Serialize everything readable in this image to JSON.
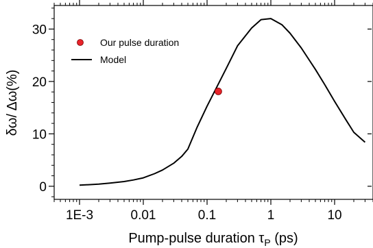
{
  "chart_data": {
    "type": "line",
    "xlabel": "Pump-pulse duration  τ",
    "xlabel_sub": "P",
    "xlabel_unit": " (ps)",
    "ylabel": "δω/ Δω(%)",
    "x_scale": "log",
    "xlim": [
      0.0004,
      40
    ],
    "ylim": [
      -2.5,
      34.5
    ],
    "x_ticks": [
      {
        "value": 0.001,
        "label": "1E-3"
      },
      {
        "value": 0.01,
        "label": "0.01"
      },
      {
        "value": 0.1,
        "label": "0.1"
      },
      {
        "value": 1,
        "label": "1"
      },
      {
        "value": 10,
        "label": "10"
      }
    ],
    "y_ticks": [
      {
        "value": 0,
        "label": "0"
      },
      {
        "value": 10,
        "label": "10"
      },
      {
        "value": 20,
        "label": "20"
      },
      {
        "value": 30,
        "label": "30"
      }
    ],
    "grid": false,
    "legend_position": "top-left",
    "series": [
      {
        "name": "Model",
        "kind": "line",
        "color": "#000000",
        "x": [
          0.001,
          0.002,
          0.003,
          0.005,
          0.007,
          0.01,
          0.015,
          0.02,
          0.03,
          0.04,
          0.05,
          0.07,
          0.1,
          0.15,
          0.2,
          0.3,
          0.5,
          0.7,
          1,
          1.5,
          2,
          3,
          5,
          7,
          10,
          15,
          20,
          30
        ],
        "y": [
          0.2,
          0.4,
          0.6,
          0.9,
          1.2,
          1.6,
          2.4,
          3.1,
          4.4,
          5.7,
          7.1,
          11.3,
          15.3,
          19.5,
          22.5,
          26.8,
          30.2,
          31.8,
          32.0,
          30.8,
          29.2,
          26.4,
          22.3,
          19.4,
          16.2,
          12.7,
          10.3,
          8.4
        ]
      },
      {
        "name": "Our pulse duration",
        "kind": "point",
        "color": "#e8232a",
        "x": [
          0.15
        ],
        "y": [
          18.1
        ]
      }
    ]
  }
}
